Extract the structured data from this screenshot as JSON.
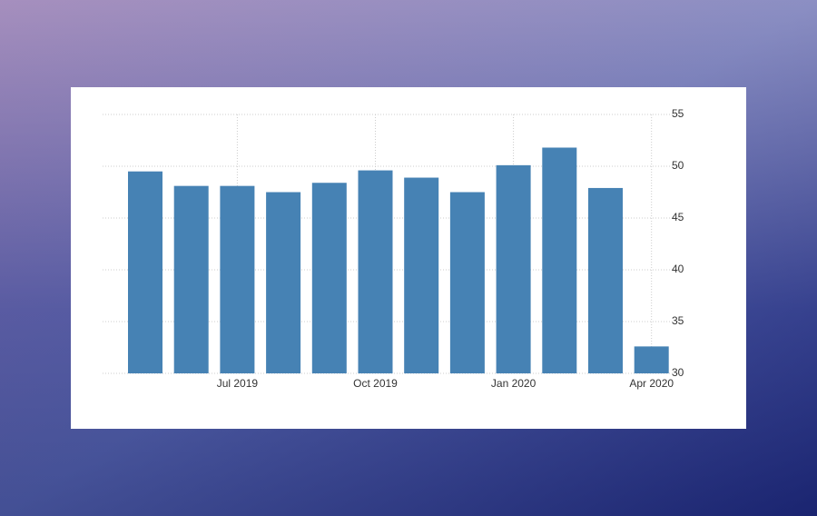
{
  "chart_data": {
    "type": "bar",
    "categories": [
      null,
      null,
      "Jul 2019",
      null,
      null,
      "Oct 2019",
      null,
      null,
      "Jan 2020",
      null,
      null,
      "Apr 2020"
    ],
    "values": [
      49.5,
      48.1,
      48.1,
      47.5,
      48.4,
      49.6,
      48.9,
      47.5,
      50.1,
      51.8,
      47.9,
      32.6
    ],
    "color": "#4682b4",
    "ylim": [
      30,
      55
    ],
    "yticks": [
      30,
      35,
      40,
      45,
      50,
      55
    ],
    "grid": true
  }
}
